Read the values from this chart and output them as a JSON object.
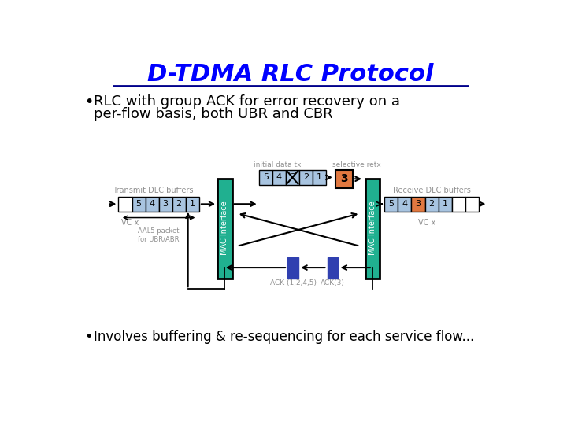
{
  "title": "D-TDMA RLC Protocol",
  "title_color": "#0000ff",
  "underline_color": "#00008b",
  "bullet1_line1": "RLC with group ACK for error recovery on a",
  "bullet1_line2": "per-flow basis, both UBR and CBR",
  "bullet2": "Involves buffering & re-sequencing for each service flow...",
  "bg_color": "#ffffff",
  "cell_blue": "#a8c4e0",
  "cell_orange": "#e07840",
  "mac_green": "#20b090",
  "ack_blue": "#3040b0",
  "transmit_label": "Transmit DLC buffers",
  "receive_label": "Receive DLC buffers",
  "mac_label": "MAC Interface",
  "vc_label": "VC x",
  "aal5_label": "AAL5 packet\nfor UBR/ABR",
  "initial_data_tx_label": "initial data tx",
  "selective_retx_label": "selective retx",
  "ack_1245_label": "ACK (1,2,4,5)",
  "ack3_label": "ACK(3)",
  "retx_number": "3",
  "gray_text": "#909090"
}
